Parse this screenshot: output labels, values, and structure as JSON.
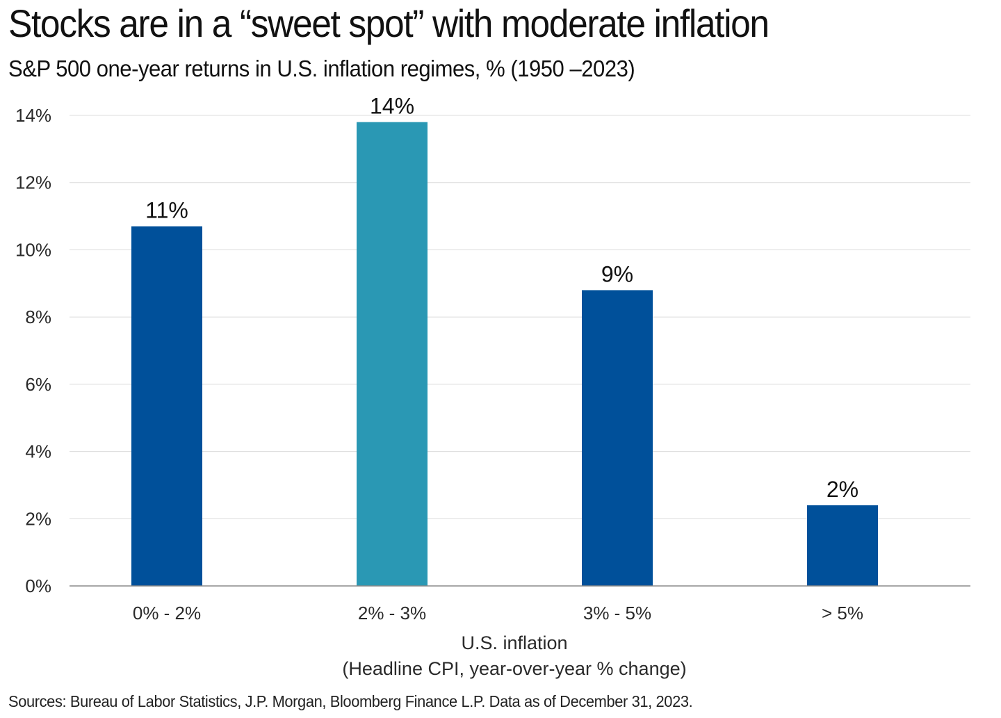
{
  "header": {
    "title": "Stocks are in a “sweet spot” with moderate inflation",
    "subtitle": "S&P 500 one-year returns in U.S. inflation regimes, % (1950 –2023)"
  },
  "footer": {
    "source": "Sources: Bureau of Labor Statistics, J.P. Morgan, Bloomberg Finance L.P. Data as of December 31, 2023."
  },
  "colors": {
    "primary_bar": "#00509a",
    "highlight_bar": "#2a98b4",
    "grid": "#dcdcdc",
    "axis": "#8a8a8a",
    "text": "#111111"
  },
  "chart_data": {
    "type": "bar",
    "title": "Stocks are in a “sweet spot” with moderate inflation",
    "subtitle": "S&P 500 one-year returns in U.S. inflation regimes, % (1950 –2023)",
    "categories": [
      "0% - 2%",
      "2% - 3%",
      "3% - 5%",
      "> 5%"
    ],
    "values": [
      10.7,
      13.8,
      8.8,
      2.4
    ],
    "data_labels": [
      "11%",
      "14%",
      "9%",
      "2%"
    ],
    "highlight_index": 1,
    "xlabel": "U.S. inflation",
    "xlabel_sub": "(Headline CPI, year-over-year % change)",
    "ylabel": "",
    "ylim": [
      0,
      14
    ],
    "yticks": [
      0,
      2,
      4,
      6,
      8,
      10,
      12,
      14
    ],
    "ytick_labels": [
      "0%",
      "2%",
      "4%",
      "6%",
      "8%",
      "10%",
      "12%",
      "14%"
    ],
    "grid": true,
    "legend": "none"
  }
}
